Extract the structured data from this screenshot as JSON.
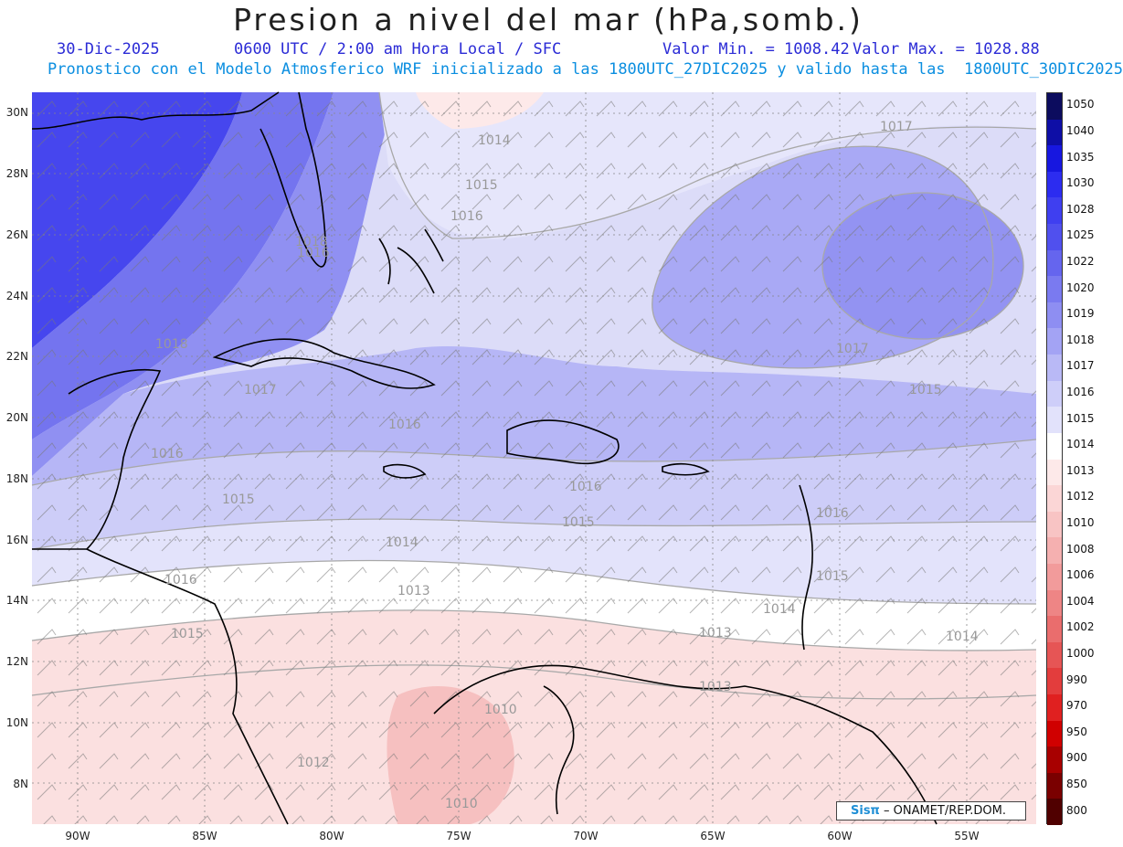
{
  "header": {
    "title": "Presion a nivel del mar (hPa,somb.)",
    "date": "30-Dic-2025",
    "time": "0600 UTC / 2:00 am Hora Local / SFC",
    "value_min": "Valor Min. = 1008.42",
    "value_max": "Valor Max. = 1028.88",
    "model_info": "Pronostico con el Modelo Atmosferico WRF inicializado a las 1800UTC_27DIC2025 y valido hasta las  1800UTC_30DIC2025"
  },
  "axes": {
    "lat_labels": [
      "30N",
      "28N",
      "26N",
      "24N",
      "22N",
      "20N",
      "18N",
      "16N",
      "14N",
      "12N",
      "10N",
      "8N"
    ],
    "lon_labels": [
      "90W",
      "85W",
      "80W",
      "75W",
      "70W",
      "65W",
      "60W",
      "55W"
    ]
  },
  "colorbar": {
    "levels": [
      "1050",
      "1040",
      "1035",
      "1030",
      "1028",
      "1025",
      "1022",
      "1020",
      "1019",
      "1018",
      "1017",
      "1016",
      "1015",
      "1014",
      "1013",
      "1012",
      "1010",
      "1008",
      "1006",
      "1004",
      "1002",
      "1000",
      "990",
      "970",
      "950",
      "900",
      "850",
      "800"
    ],
    "colors": [
      "#0c0c5e",
      "#0e0ea6",
      "#1717e0",
      "#2c2cf0",
      "#3f3ff0",
      "#5050ee",
      "#6565ee",
      "#7a7af0",
      "#8e8ef2",
      "#a3a3f4",
      "#b9b9f6",
      "#cecef9",
      "#e2e2fb",
      "#ffffff",
      "#fde9e9",
      "#fbd6d6",
      "#f8c4c4",
      "#f5b0b0",
      "#f29b9b",
      "#ee8585",
      "#ea6d6d",
      "#e65555",
      "#e33d3d",
      "#e02020",
      "#d00000",
      "#a80000",
      "#7a0000",
      "#500000"
    ]
  },
  "map": {
    "isobar_labels": [
      "1014",
      "1015",
      "1016",
      "1017",
      "1017",
      "1018",
      "1018",
      "1017",
      "1016",
      "1016",
      "1015",
      "1016",
      "1015",
      "1014",
      "1013",
      "1016",
      "1015",
      "1013",
      "1014",
      "1016",
      "1015",
      "1012",
      "1013",
      "1010",
      "1010",
      "1016",
      "1015",
      "1014"
    ]
  },
  "credit": {
    "logo": "Sisπ",
    "text": "– ONAMET/REP.DOM."
  }
}
